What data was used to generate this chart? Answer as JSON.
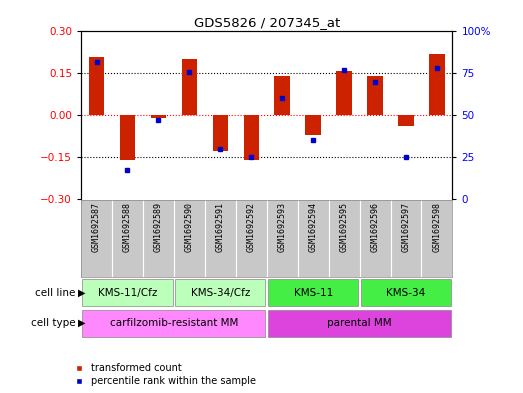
{
  "title": "GDS5826 / 207345_at",
  "samples": [
    "GSM1692587",
    "GSM1692588",
    "GSM1692589",
    "GSM1692590",
    "GSM1692591",
    "GSM1692592",
    "GSM1692593",
    "GSM1692594",
    "GSM1692595",
    "GSM1692596",
    "GSM1692597",
    "GSM1692598"
  ],
  "transformed_count": [
    0.21,
    -0.16,
    -0.01,
    0.2,
    -0.13,
    -0.16,
    0.14,
    -0.07,
    0.16,
    0.14,
    -0.04,
    0.22
  ],
  "percentile_rank": [
    82,
    17,
    47,
    76,
    30,
    25,
    60,
    35,
    77,
    70,
    25,
    78
  ],
  "cell_lines": [
    {
      "label": "KMS-11/Cfz",
      "start": 0,
      "end": 3,
      "color": "#BBFFBB"
    },
    {
      "label": "KMS-34/Cfz",
      "start": 3,
      "end": 6,
      "color": "#BBFFBB"
    },
    {
      "label": "KMS-11",
      "start": 6,
      "end": 9,
      "color": "#44EE44"
    },
    {
      "label": "KMS-34",
      "start": 9,
      "end": 12,
      "color": "#44EE44"
    }
  ],
  "cell_types": [
    {
      "label": "carfilzomib-resistant MM",
      "start": 0,
      "end": 6,
      "color": "#FF88FF"
    },
    {
      "label": "parental MM",
      "start": 6,
      "end": 12,
      "color": "#DD44DD"
    }
  ],
  "bar_color": "#CC2200",
  "dot_color": "#0000CC",
  "sample_bg": "#C8C8C8",
  "ylim_left": [
    -0.3,
    0.3
  ],
  "ylim_right": [
    0,
    100
  ],
  "yticks_left": [
    -0.3,
    -0.15,
    0,
    0.15,
    0.3
  ],
  "yticks_right": [
    0,
    25,
    50,
    75,
    100
  ],
  "ytick_labels_right": [
    "0",
    "25",
    "50",
    "75",
    "100%"
  ],
  "hline_values": [
    -0.15,
    0,
    0.15
  ],
  "hline_colors": [
    "black",
    "red",
    "black"
  ],
  "legend_transformed": "transformed count",
  "legend_percentile": "percentile rank within the sample",
  "label_cell_line": "cell line",
  "label_cell_type": "cell type"
}
